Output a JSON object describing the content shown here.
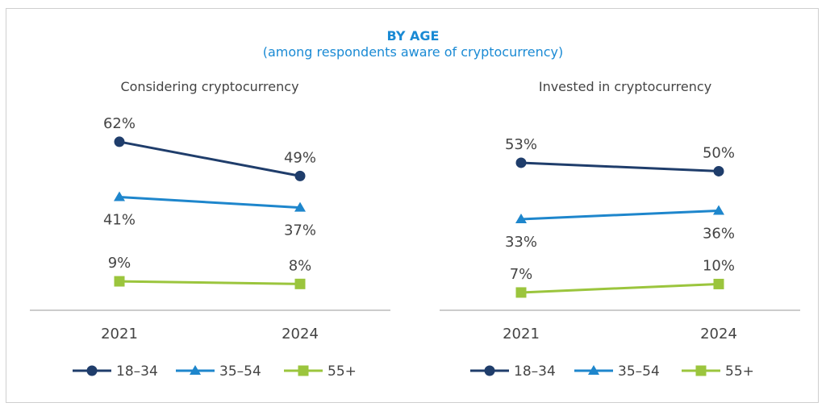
{
  "title": "BY AGE",
  "subtitle": "(among respondents aware of cryptocurrency)",
  "colors": {
    "title": "#1a8ad4",
    "18-34": "#1f3d6b",
    "35-54": "#1e86cc",
    "55+": "#9bc53d"
  },
  "chart_data": [
    {
      "type": "line",
      "title": "Considering cryptocurrency",
      "categories": [
        "2021",
        "2024"
      ],
      "ylim": [
        -2,
        73
      ],
      "grid": false,
      "legend": "bottom",
      "series": [
        {
          "name": "18–34",
          "marker": "circle",
          "color": "#1f3d6b",
          "values": [
            62,
            49
          ],
          "labels": [
            "62%",
            "49%"
          ],
          "label_pos": "above"
        },
        {
          "name": "35–54",
          "marker": "triangle",
          "color": "#1e86cc",
          "values": [
            41,
            37
          ],
          "labels": [
            "41%",
            "37%"
          ],
          "label_pos": "below"
        },
        {
          "name": "55+",
          "marker": "square",
          "color": "#9bc53d",
          "values": [
            9,
            8
          ],
          "labels": [
            "9%",
            "8%"
          ],
          "label_pos": "above"
        }
      ]
    },
    {
      "type": "line",
      "title": "Invested in cryptocurrency",
      "categories": [
        "2021",
        "2024"
      ],
      "ylim": [
        0.7,
        70.7
      ],
      "grid": false,
      "legend": "bottom",
      "series": [
        {
          "name": "18–34",
          "marker": "circle",
          "color": "#1f3d6b",
          "values": [
            53,
            50
          ],
          "labels": [
            "53%",
            "50%"
          ],
          "label_pos": "above"
        },
        {
          "name": "35–54",
          "marker": "triangle",
          "color": "#1e86cc",
          "values": [
            33,
            36
          ],
          "labels": [
            "33%",
            "36%"
          ],
          "label_pos": "below"
        },
        {
          "name": "55+",
          "marker": "square",
          "color": "#9bc53d",
          "values": [
            7,
            10
          ],
          "labels": [
            "7%",
            "10%"
          ],
          "label_pos": "above"
        }
      ]
    }
  ]
}
